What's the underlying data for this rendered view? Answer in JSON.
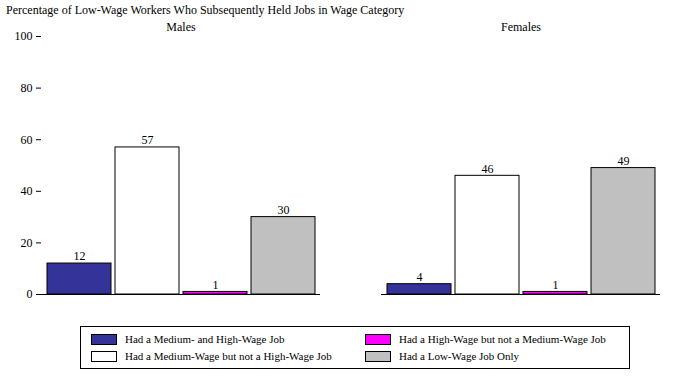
{
  "chart_data": {
    "type": "bar",
    "title": "Percentage of Low-Wage Workers Who Subsequently Held Jobs in Wage Category",
    "categories": [
      "Males",
      "Females"
    ],
    "series": [
      {
        "name": "Had a Medium- and High-Wage Job",
        "color": "#333399",
        "values": [
          12,
          4
        ]
      },
      {
        "name": "Had a Medium-Wage but not a High-Wage Job",
        "color": "#ffffff",
        "values": [
          57,
          46
        ]
      },
      {
        "name": "Had a High-Wage but not a Medium-Wage Job",
        "color": "#ff00ff",
        "values": [
          1,
          1
        ]
      },
      {
        "name": "Had a Low-Wage Job Only",
        "color": "#c0c0c0",
        "values": [
          30,
          49
        ]
      }
    ],
    "ylim": [
      0,
      100
    ],
    "yticks": [
      0,
      20,
      40,
      60,
      80,
      100
    ],
    "grid": false,
    "legend": "bottom",
    "data_labels": true
  }
}
